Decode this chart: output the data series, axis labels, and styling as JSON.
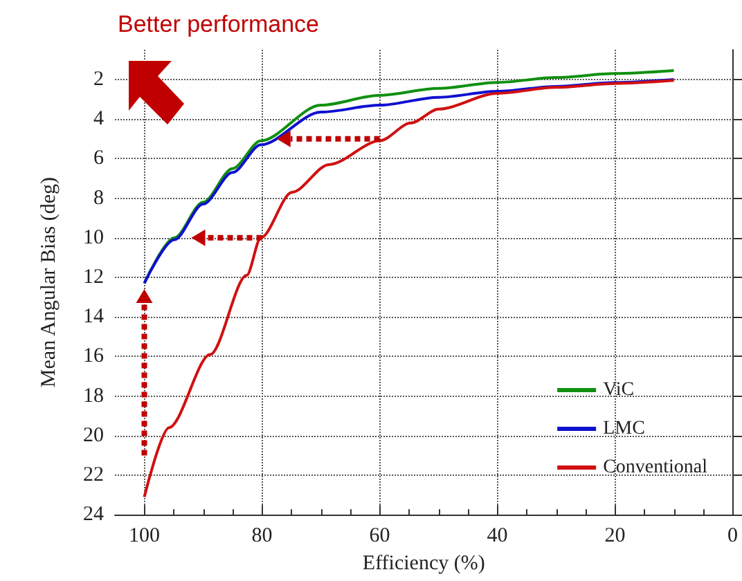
{
  "chart_data": {
    "type": "line",
    "title": "Better performance",
    "xlabel": "Efficiency (%)",
    "ylabel": "Mean Angular Bias (deg)",
    "xlim": [
      105,
      0
    ],
    "ylim": [
      24,
      0.5
    ],
    "xticks": [
      100,
      80,
      60,
      40,
      20,
      0
    ],
    "yticks": [
      2,
      4,
      6,
      8,
      10,
      12,
      14,
      16,
      18,
      20,
      22,
      24
    ],
    "grid": true,
    "legend": "bottom right",
    "marker": "none",
    "line_style": "solid",
    "series": [
      {
        "name": "ViC",
        "color": "#109010",
        "x": [
          100,
          94.9,
          90,
          85,
          80.2,
          70,
          60,
          50,
          40,
          30,
          20,
          10
        ],
        "values": [
          12.3,
          10,
          8.2,
          6.5,
          5.1,
          3.3,
          2.8,
          2.45,
          2.15,
          1.9,
          1.7,
          1.55
        ]
      },
      {
        "name": "LMC",
        "color": "#1010d0",
        "x": [
          100,
          94.9,
          90,
          85,
          80.2,
          70,
          60,
          50,
          40,
          30,
          20,
          10
        ],
        "values": [
          12.3,
          10.1,
          8.3,
          6.7,
          5.3,
          3.65,
          3.3,
          2.9,
          2.6,
          2.35,
          2.15,
          2.0
        ]
      },
      {
        "name": "Conventional",
        "color": "#d01010",
        "x": [
          100,
          95.8,
          88.8,
          82.6,
          80.2,
          74.9,
          68.6,
          60,
          54.7,
          50,
          40,
          30,
          20,
          10
        ],
        "values": [
          23.1,
          19.6,
          15.9,
          11.9,
          10,
          7.7,
          6.3,
          5.1,
          4.2,
          3.5,
          2.7,
          2.4,
          2.2,
          2.05
        ]
      }
    ]
  }
}
